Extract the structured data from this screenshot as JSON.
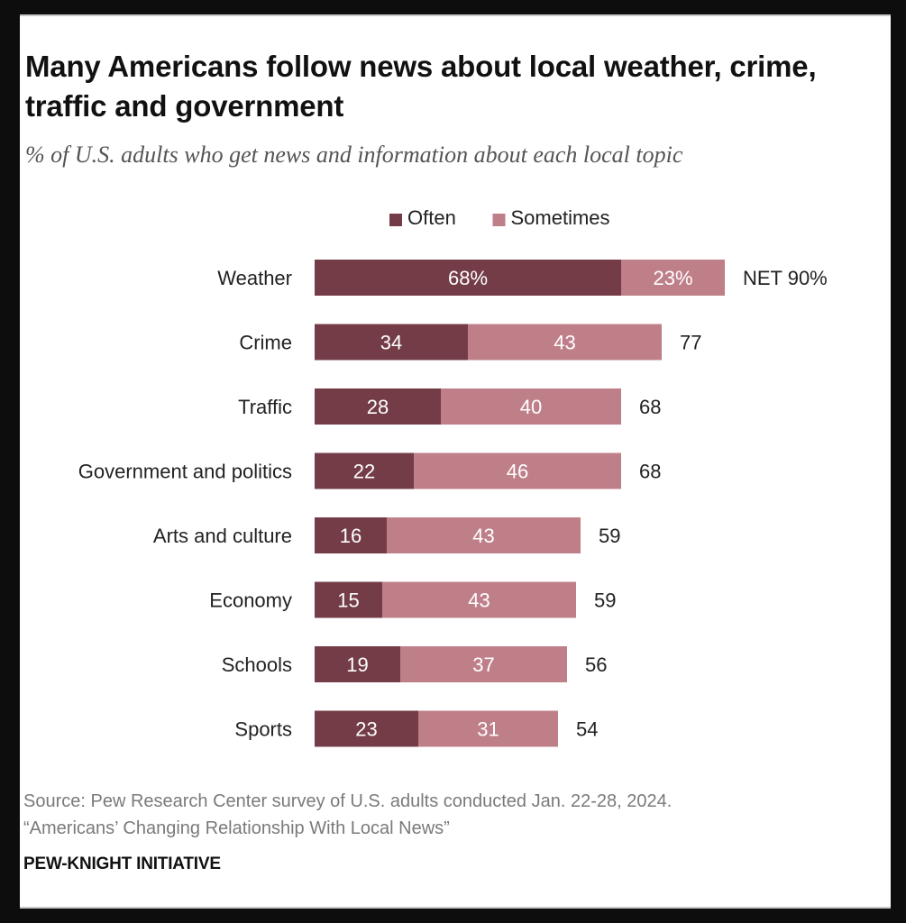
{
  "title": "Many Americans follow news about local weather, crime, traffic and government",
  "subtitle": "% of U.S. adults who get news and information about each local topic",
  "source_line1": "Source: Pew Research Center survey of U.S. adults conducted Jan. 22-28, 2024.",
  "source_line2": "“Americans’ Changing Relationship With Local News”",
  "brand": "PEW-KNIGHT INITIATIVE",
  "colors": {
    "often": "#733c47",
    "sometimes": "#bf7f89"
  },
  "chart_data": {
    "type": "bar",
    "orientation": "horizontal",
    "stacked": true,
    "title": "Many Americans follow news about local weather, crime, traffic and government",
    "subtitle": "% of U.S. adults who get news and information about each local topic",
    "legend_placement": "top",
    "grid": false,
    "xlim": [
      0,
      100
    ],
    "categories": [
      "Weather",
      "Crime",
      "Traffic",
      "Government and politics",
      "Arts and culture",
      "Economy",
      "Schools",
      "Sports"
    ],
    "series": [
      {
        "name": "Often",
        "values": [
          68,
          34,
          28,
          22,
          16,
          15,
          19,
          23
        ],
        "labels": [
          "68%",
          "34",
          "28",
          "22",
          "16",
          "15",
          "19",
          "23"
        ]
      },
      {
        "name": "Sometimes",
        "values": [
          23,
          43,
          40,
          46,
          43,
          43,
          37,
          31
        ],
        "labels": [
          "23%",
          "43",
          "40",
          "46",
          "43",
          "43",
          "37",
          "31"
        ]
      }
    ],
    "net": [
      90,
      77,
      68,
      68,
      59,
      59,
      56,
      54
    ],
    "net_labels": [
      "NET 90%",
      "77",
      "68",
      "68",
      "59",
      "59",
      "56",
      "54"
    ]
  }
}
